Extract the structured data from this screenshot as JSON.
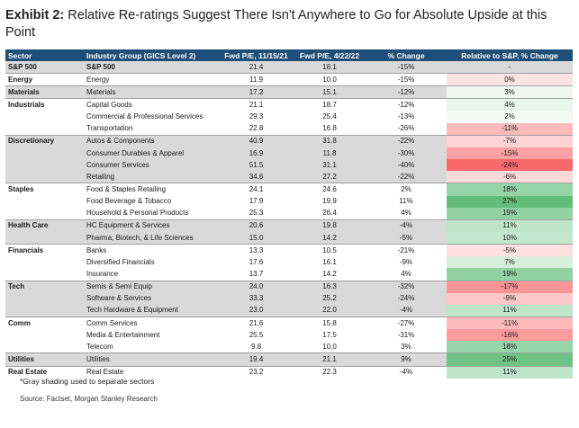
{
  "title": {
    "bold": "Exhibit 2:",
    "text": "Relative Re-ratings Suggest There Isn't Anywhere to Go for Absolute Upside at this Point"
  },
  "headers": [
    "Sector",
    "Industry Group (GICS Level 2)",
    "Fwd P/E, 11/15/21",
    "Fwd P/E, 4/22/22",
    "% Change",
    "Relative to S&P, % Change"
  ],
  "colors": {
    "header_bg": "#1f4e79",
    "gray_row": "#d9d9d9",
    "positive_strong": "#63be7b",
    "negative_strong": "#f8696b"
  },
  "rows": [
    {
      "sector": "S&P 500",
      "industry": "S&P 500",
      "pe_nov": "21.4",
      "pe_apr": "18.1",
      "change": "-15%",
      "relative": "-",
      "rel_value": null,
      "gray": true,
      "sep": true,
      "bold_industry": true
    },
    {
      "sector": "Energy",
      "industry": "Energy",
      "pe_nov": "11.9",
      "pe_apr": "10.0",
      "change": "-15%",
      "relative": "0%",
      "rel_value": 0,
      "gray": false,
      "sep": true
    },
    {
      "sector": "Materials",
      "industry": "Materials",
      "pe_nov": "17.2",
      "pe_apr": "15.1",
      "change": "-12%",
      "relative": "3%",
      "rel_value": 3,
      "gray": true,
      "sep": true
    },
    {
      "sector": "Industrials",
      "industry": "Capital Goods",
      "pe_nov": "21.1",
      "pe_apr": "18.7",
      "change": "-12%",
      "relative": "4%",
      "rel_value": 4,
      "gray": false,
      "sep": false
    },
    {
      "sector": "",
      "industry": "Commercial & Professional Services",
      "pe_nov": "29.3",
      "pe_apr": "25.4",
      "change": "-13%",
      "relative": "2%",
      "rel_value": 2,
      "gray": false,
      "sep": false
    },
    {
      "sector": "",
      "industry": "Transportation",
      "pe_nov": "22.8",
      "pe_apr": "16.8",
      "change": "-26%",
      "relative": "-11%",
      "rel_value": -11,
      "gray": false,
      "sep": true
    },
    {
      "sector": "Discretionary",
      "industry": "Autos & Components",
      "pe_nov": "40.9",
      "pe_apr": "31.8",
      "change": "-22%",
      "relative": "-7%",
      "rel_value": -7,
      "gray": true,
      "sep": false
    },
    {
      "sector": "",
      "industry": "Consumer Durables & Apparel",
      "pe_nov": "16.9",
      "pe_apr": "11.8",
      "change": "-30%",
      "relative": "-15%",
      "rel_value": -15,
      "gray": true,
      "sep": false
    },
    {
      "sector": "",
      "industry": "Consumer Services",
      "pe_nov": "51.5",
      "pe_apr": "31.1",
      "change": "-40%",
      "relative": "-24%",
      "rel_value": -24,
      "gray": true,
      "sep": false
    },
    {
      "sector": "",
      "industry": "Retailing",
      "pe_nov": "34.6",
      "pe_apr": "27.2",
      "change": "-22%",
      "relative": "-6%",
      "rel_value": -6,
      "gray": true,
      "sep": true
    },
    {
      "sector": "Staples",
      "industry": "Food & Staples Retailing",
      "pe_nov": "24.1",
      "pe_apr": "24.6",
      "change": "2%",
      "relative": "18%",
      "rel_value": 18,
      "gray": false,
      "sep": false
    },
    {
      "sector": "",
      "industry": "Food Beverage & Tobacco",
      "pe_nov": "17.9",
      "pe_apr": "19.9",
      "change": "11%",
      "relative": "27%",
      "rel_value": 27,
      "gray": false,
      "sep": false
    },
    {
      "sector": "",
      "industry": "Household & Personal Products",
      "pe_nov": "25.3",
      "pe_apr": "26.4",
      "change": "4%",
      "relative": "19%",
      "rel_value": 19,
      "gray": false,
      "sep": true
    },
    {
      "sector": "Health Care",
      "industry": "HC Equipment & Services",
      "pe_nov": "20.6",
      "pe_apr": "19.8",
      "change": "-4%",
      "relative": "11%",
      "rel_value": 11,
      "gray": true,
      "sep": false
    },
    {
      "sector": "",
      "industry": "Pharma, Biotech, & Life Sciences",
      "pe_nov": "15.0",
      "pe_apr": "14.2",
      "change": "-5%",
      "relative": "10%",
      "rel_value": 10,
      "gray": true,
      "sep": true
    },
    {
      "sector": "Financials",
      "industry": "Banks",
      "pe_nov": "13.3",
      "pe_apr": "10.5",
      "change": "-21%",
      "relative": "-5%",
      "rel_value": -5,
      "gray": false,
      "sep": false
    },
    {
      "sector": "",
      "industry": "Diversified Financials",
      "pe_nov": "17.6",
      "pe_apr": "16.1",
      "change": "-9%",
      "relative": "7%",
      "rel_value": 7,
      "gray": false,
      "sep": false
    },
    {
      "sector": "",
      "industry": "Insurance",
      "pe_nov": "13.7",
      "pe_apr": "14.2",
      "change": "4%",
      "relative": "19%",
      "rel_value": 19,
      "gray": false,
      "sep": true
    },
    {
      "sector": "Tech",
      "industry": "Semis & Semi Equip",
      "pe_nov": "24.0",
      "pe_apr": "16.3",
      "change": "-32%",
      "relative": "-17%",
      "rel_value": -17,
      "gray": true,
      "sep": false
    },
    {
      "sector": "",
      "industry": "Software & Services",
      "pe_nov": "33.3",
      "pe_apr": "25.2",
      "change": "-24%",
      "relative": "-9%",
      "rel_value": -9,
      "gray": true,
      "sep": false
    },
    {
      "sector": "",
      "industry": "Tech Hardware & Equipment",
      "pe_nov": "23.0",
      "pe_apr": "22.0",
      "change": "-4%",
      "relative": "11%",
      "rel_value": 11,
      "gray": true,
      "sep": true
    },
    {
      "sector": "Comm",
      "industry": "Comm Services",
      "pe_nov": "21.6",
      "pe_apr": "15.8",
      "change": "-27%",
      "relative": "-11%",
      "rel_value": -11,
      "gray": false,
      "sep": false
    },
    {
      "sector": "",
      "industry": "Media & Entertainment",
      "pe_nov": "25.5",
      "pe_apr": "17.5",
      "change": "-31%",
      "relative": "-16%",
      "rel_value": -16,
      "gray": false,
      "sep": false
    },
    {
      "sector": "",
      "industry": "Telecom",
      "pe_nov": "9.8",
      "pe_apr": "10.0",
      "change": "3%",
      "relative": "18%",
      "rel_value": 18,
      "gray": false,
      "sep": true
    },
    {
      "sector": "Utilities",
      "industry": "Utilities",
      "pe_nov": "19.4",
      "pe_apr": "21.1",
      "change": "9%",
      "relative": "25%",
      "rel_value": 25,
      "gray": true,
      "sep": true
    },
    {
      "sector": "Real Estate",
      "industry": "Real Estate",
      "pe_nov": "23.2",
      "pe_apr": "22.3",
      "change": "-4%",
      "relative": "11%",
      "rel_value": 11,
      "gray": false,
      "sep": false
    }
  ],
  "footnote": "*Gray shading used to separate sectors",
  "source": "Source: Factset, Morgan Stanley Research"
}
